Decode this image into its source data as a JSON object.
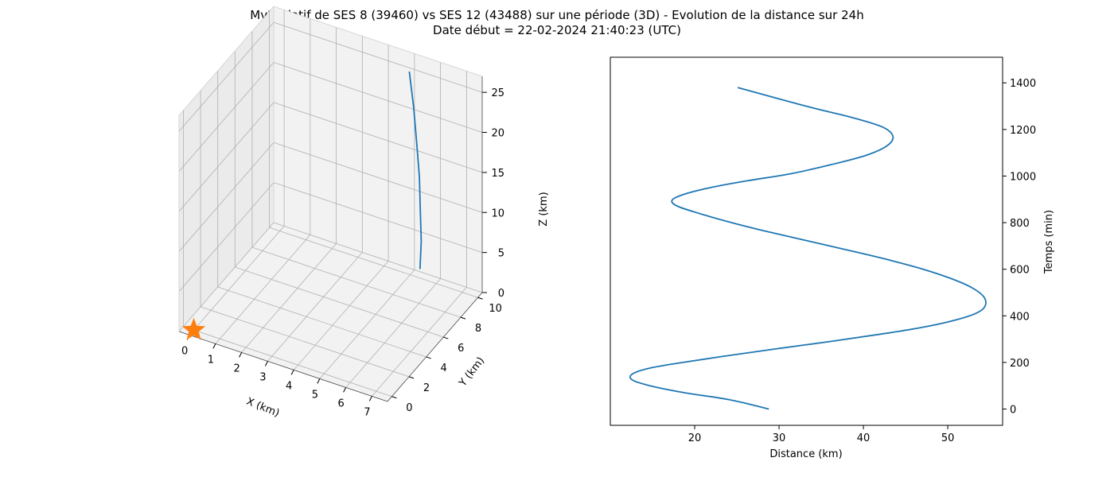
{
  "title_line1": "Mvt relatif de SES 8 (39460) vs SES 12 (43488) sur une période (3D) - Evolution de la distance sur 24h",
  "title_line2": "Date début = 22-02-2024 21:40:23 (UTC)",
  "colors": {
    "series": "#1f77b4",
    "marker": "#ff7f0e",
    "grid": "#b0b0b0",
    "pane": "#f2f2f2"
  },
  "chart_data": [
    {
      "type": "line3d",
      "xlabel": "X (km)",
      "ylabel": "Y (km)",
      "zlabel": "Z (km)",
      "x_ticks": [
        "0",
        "1",
        "2",
        "3",
        "4",
        "5",
        "6",
        "7"
      ],
      "y_ticks": [
        "0",
        "2",
        "4",
        "6",
        "8",
        "10"
      ],
      "z_ticks": [
        "0",
        "5",
        "10",
        "15",
        "20",
        "25"
      ],
      "xlim": [
        -0.4,
        7.6
      ],
      "ylim": [
        -0.5,
        10.5
      ],
      "zlim": [
        0,
        27
      ],
      "series": [
        {
          "x": [
            5.0,
            5.3,
            5.6,
            5.9,
            6.15,
            6.4,
            6.55
          ],
          "y": [
            9.9,
            9.5,
            8.95,
            8.35,
            7.7,
            7.05,
            6.45
          ],
          "z": [
            25.5,
            21.8,
            18.4,
            15.2,
            12.2,
            9.4,
            6.8
          ]
        }
      ],
      "marker": {
        "shape": "star",
        "x": 0,
        "y": 0,
        "z": 0
      }
    },
    {
      "type": "line",
      "xlabel": "Distance (km)",
      "ylabel": "Temps (min)",
      "x_ticks": [
        "20",
        "30",
        "40",
        "50"
      ],
      "y_ticks": [
        "0",
        "200",
        "400",
        "600",
        "800",
        "1000",
        "1200",
        "1400"
      ],
      "xlim": [
        10,
        56.5
      ],
      "ylim": [
        -70,
        1510
      ],
      "series": [
        {
          "x": [
            28.8,
            24.1,
            18.8,
            14.7,
            12.6,
            12.6,
            14.6,
            18.6,
            24.1,
            30.0,
            36.1,
            41.8,
            46.9,
            50.7,
            53.3,
            54.4,
            54.3,
            52.9,
            50.4,
            47.1,
            43.0,
            38.4,
            33.6,
            28.8,
            24.4,
            20.5,
            18.0,
            17.3,
            18.6,
            21.8,
            26.3,
            31.4,
            36.3,
            40.4,
            42.8,
            43.5,
            42.3,
            38.8,
            33.2,
            25.1
          ],
          "y": [
            0,
            40,
            70,
            100,
            125,
            150,
            175,
            200,
            230,
            260,
            290,
            320,
            350,
            380,
            410,
            440,
            480,
            520,
            560,
            600,
            640,
            680,
            720,
            760,
            800,
            840,
            870,
            895,
            920,
            950,
            980,
            1010,
            1050,
            1090,
            1130,
            1170,
            1210,
            1250,
            1300,
            1380
          ]
        }
      ]
    }
  ]
}
